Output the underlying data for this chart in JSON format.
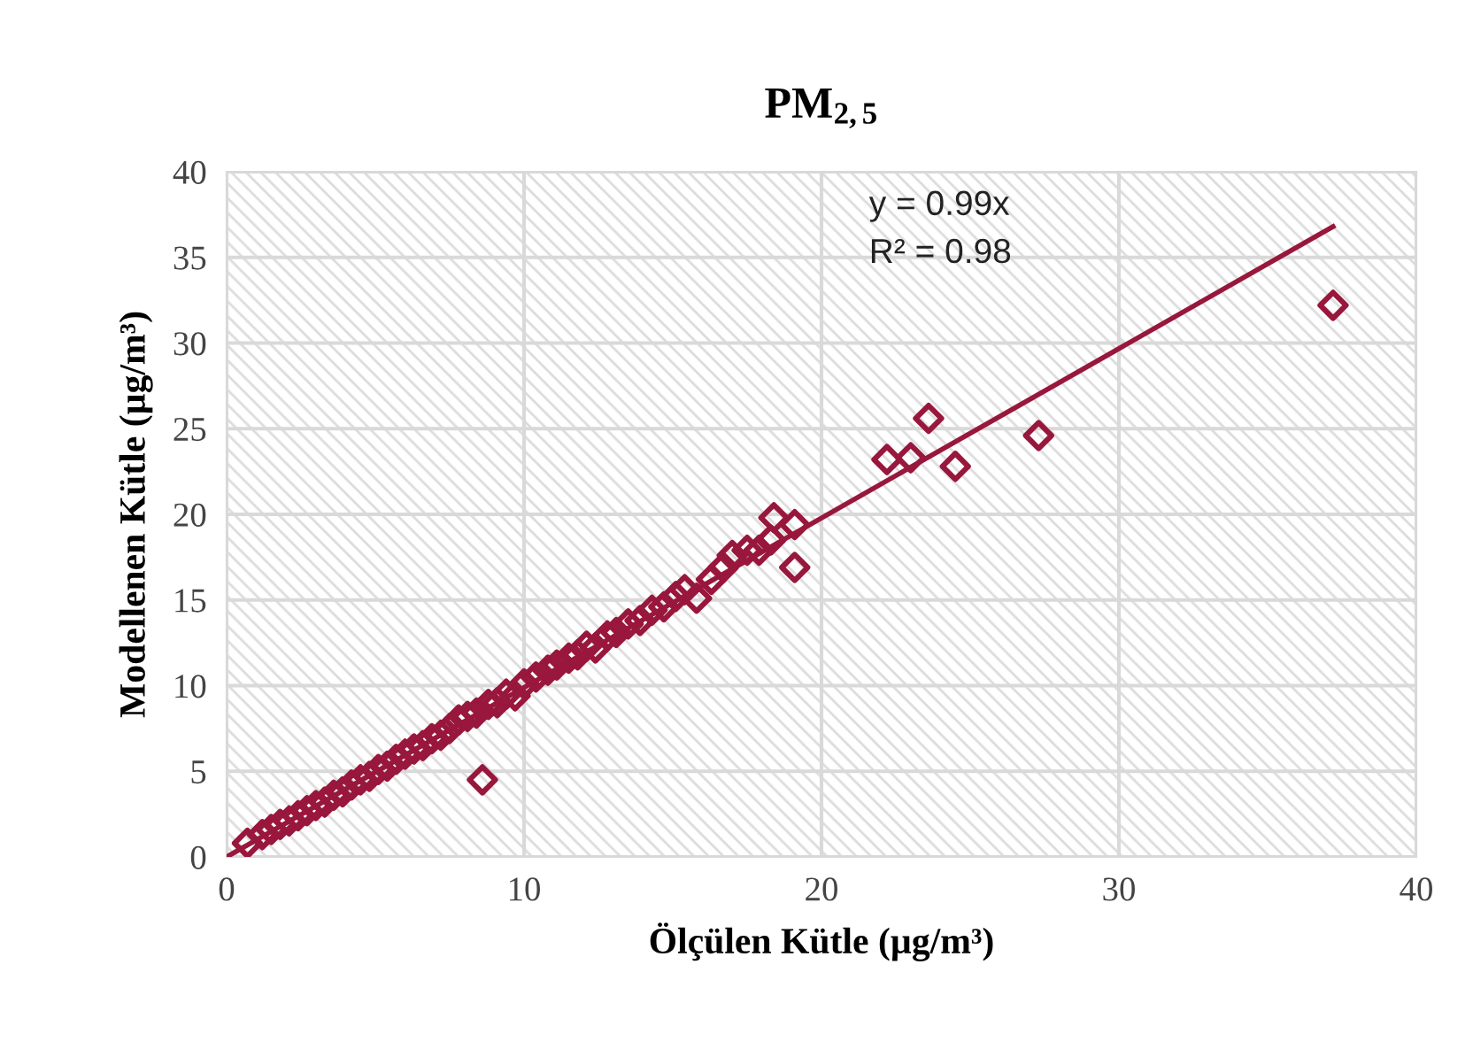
{
  "chart_data": {
    "type": "scatter",
    "title": "PM$_{2,5}$",
    "xlabel": "Ölçülen Kütle (µg/m³)",
    "ylabel": "Modellenen Kütle (µg/m³)",
    "annotations": [
      "y = 0.99x",
      "R² = 0.98"
    ],
    "xlim": [
      0,
      40
    ],
    "ylim": [
      0,
      40
    ],
    "xticks": [
      0,
      10,
      20,
      30,
      40
    ],
    "yticks": [
      0,
      5,
      10,
      15,
      20,
      25,
      30,
      35,
      40
    ],
    "grid": true,
    "marker": "diamond",
    "legend": false,
    "series": [
      {
        "color": "#99173c",
        "x": [
          0.7,
          1.2,
          1.5,
          1.8,
          2.1,
          2.4,
          2.7,
          3.0,
          3.3,
          3.6,
          3.9,
          4.2,
          4.5,
          4.8,
          5.1,
          5.4,
          5.7,
          6.0,
          6.3,
          6.6,
          6.9,
          7.2,
          7.5,
          7.8,
          8.1,
          8.4,
          8.8,
          9.1,
          9.4,
          9.7,
          10.0,
          10.4,
          10.8,
          11.1,
          11.5,
          11.8,
          12.1,
          12.4,
          12.8,
          13.1,
          13.5,
          13.9,
          14.3,
          14.7,
          15.1,
          15.4,
          15.8,
          16.3,
          16.7,
          17.0,
          17.5,
          17.9,
          18.3,
          8.6,
          19.1,
          18.4,
          19.1,
          22.2,
          23.0,
          23.6,
          24.5,
          27.3,
          37.2
        ],
        "values": [
          0.8,
          1.3,
          1.6,
          1.9,
          2.1,
          2.4,
          2.7,
          3.0,
          3.2,
          3.6,
          3.8,
          4.2,
          4.5,
          4.7,
          5.1,
          5.3,
          5.7,
          6.0,
          6.3,
          6.5,
          6.9,
          7.1,
          7.5,
          8.0,
          8.2,
          8.4,
          8.9,
          9.0,
          9.5,
          9.4,
          10.1,
          10.5,
          10.9,
          11.2,
          11.6,
          11.8,
          12.3,
          12.2,
          12.9,
          13.1,
          13.6,
          13.8,
          14.4,
          14.6,
          15.2,
          15.6,
          15.1,
          16.2,
          16.9,
          17.6,
          17.9,
          17.9,
          18.5,
          4.5,
          16.9,
          19.8,
          19.4,
          23.2,
          23.3,
          25.6,
          22.8,
          24.6,
          32.2
        ]
      },
      {
        "type": "line",
        "color": "#99173c",
        "marker": "none",
        "line_style": "solid",
        "x": [
          0,
          37.2
        ],
        "values": [
          0,
          36.8
        ]
      }
    ]
  }
}
